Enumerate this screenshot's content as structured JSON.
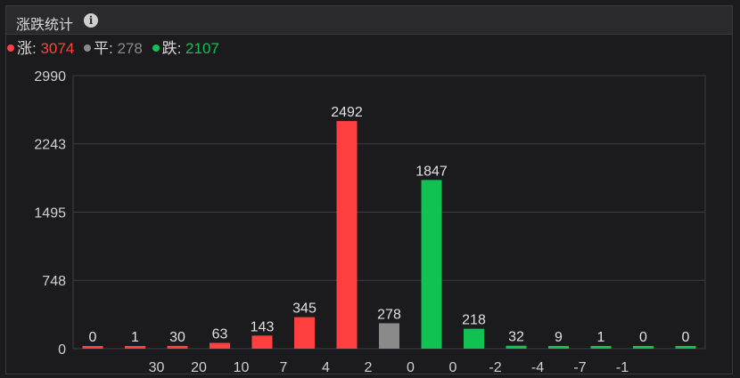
{
  "header": {
    "title": "涨跌统计",
    "info_icon": "info-icon"
  },
  "legend": [
    {
      "label": "涨",
      "value": "3074",
      "color": "#ff4040"
    },
    {
      "label": "平",
      "value": "278",
      "color": "#8a8a8a"
    },
    {
      "label": "跌",
      "value": "2107",
      "color": "#0fc252"
    }
  ],
  "chart_data": {
    "type": "bar",
    "categories": [
      "",
      "30",
      "20",
      "10",
      "7",
      "4",
      "2",
      "0",
      "0",
      "-2",
      "-4",
      "-7",
      "-1",
      "",
      ""
    ],
    "values": [
      0,
      1,
      30,
      63,
      143,
      345,
      2492,
      278,
      1847,
      218,
      32,
      9,
      1,
      0,
      0
    ],
    "colors": [
      "#ff4040",
      "#ff4040",
      "#ff4040",
      "#ff4040",
      "#ff4040",
      "#ff4040",
      "#ff4040",
      "#8a8a8a",
      "#0fc252",
      "#0fc252",
      "#0fc252",
      "#0fc252",
      "#0fc252",
      "#0fc252",
      "#0fc252"
    ],
    "ylim": [
      0,
      2990
    ],
    "yticks": [
      "2990",
      "2243",
      "1495",
      "748",
      "0"
    ],
    "ytick_values": [
      2990,
      2243,
      1495,
      748,
      0
    ],
    "grid": true
  }
}
